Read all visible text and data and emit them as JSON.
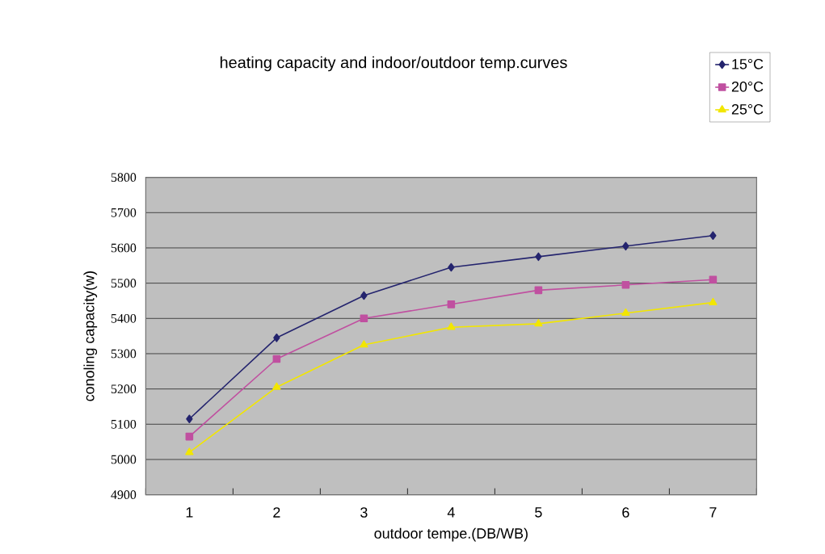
{
  "chart_data": {
    "type": "line",
    "title": "heating capacity and indoor/outdoor temp.curves",
    "xlabel": "outdoor tempe.(DB/WB)",
    "ylabel": "conoling capacity(w)",
    "categories": [
      "1",
      "2",
      "3",
      "4",
      "5",
      "6",
      "7"
    ],
    "series": [
      {
        "name": "15°C",
        "color": "#24246e",
        "marker": "diamond",
        "values": [
          5115,
          5345,
          5465,
          5545,
          5575,
          5605,
          5635
        ]
      },
      {
        "name": "20°C",
        "color": "#c050a0",
        "marker": "square",
        "values": [
          5065,
          5285,
          5400,
          5440,
          5480,
          5495,
          5510
        ]
      },
      {
        "name": "25°C",
        "color": "#f2e600",
        "marker": "triangle",
        "values": [
          5020,
          5205,
          5325,
          5375,
          5385,
          5415,
          5445
        ]
      }
    ],
    "ylim": [
      4900,
      5800
    ],
    "yticks": [
      4900,
      5000,
      5100,
      5200,
      5300,
      5400,
      5500,
      5600,
      5700,
      5800
    ],
    "grid": "y",
    "legend": "top right"
  }
}
